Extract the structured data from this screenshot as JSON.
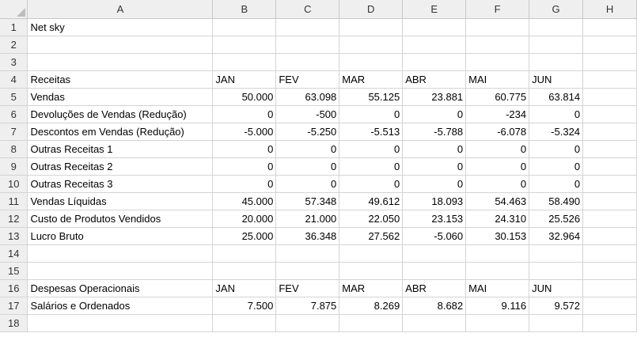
{
  "column_headers": [
    "A",
    "B",
    "C",
    "D",
    "E",
    "F",
    "G",
    "H"
  ],
  "rows": [
    {
      "n": "1",
      "cells": [
        "Net sky",
        "",
        "",
        "",
        "",
        "",
        "",
        ""
      ]
    },
    {
      "n": "2",
      "cells": [
        "",
        "",
        "",
        "",
        "",
        "",
        "",
        ""
      ]
    },
    {
      "n": "3",
      "cells": [
        "",
        "",
        "",
        "",
        "",
        "",
        "",
        ""
      ]
    },
    {
      "n": "4",
      "cells": [
        "Receitas",
        "JAN",
        "FEV",
        "MAR",
        "ABR",
        "MAI",
        "JUN",
        ""
      ]
    },
    {
      "n": "5",
      "cells": [
        "Vendas",
        "50.000",
        "63.098",
        "55.125",
        "23.881",
        "60.775",
        "63.814",
        ""
      ]
    },
    {
      "n": "6",
      "cells": [
        "Devoluções de Vendas (Redução)",
        "0",
        "-500",
        "0",
        "0",
        "-234",
        "0",
        ""
      ]
    },
    {
      "n": "7",
      "cells": [
        "Descontos em Vendas (Redução)",
        "-5.000",
        "-5.250",
        "-5.513",
        "-5.788",
        "-6.078",
        "-5.324",
        ""
      ]
    },
    {
      "n": "8",
      "cells": [
        "Outras Receitas 1",
        "0",
        "0",
        "0",
        "0",
        "0",
        "0",
        ""
      ]
    },
    {
      "n": "9",
      "cells": [
        "Outras Receitas 2",
        "0",
        "0",
        "0",
        "0",
        "0",
        "0",
        ""
      ]
    },
    {
      "n": "10",
      "cells": [
        "Outras Receitas 3",
        "0",
        "0",
        "0",
        "0",
        "0",
        "0",
        ""
      ]
    },
    {
      "n": "11",
      "cells": [
        "Vendas Líquidas",
        "45.000",
        "57.348",
        "49.612",
        "18.093",
        "54.463",
        "58.490",
        ""
      ]
    },
    {
      "n": "12",
      "cells": [
        "Custo de Produtos Vendidos",
        "20.000",
        "21.000",
        "22.050",
        "23.153",
        "24.310",
        "25.526",
        ""
      ]
    },
    {
      "n": "13",
      "cells": [
        "Lucro Bruto",
        "25.000",
        "36.348",
        "27.562",
        "-5.060",
        "30.153",
        "32.964",
        ""
      ]
    },
    {
      "n": "14",
      "cells": [
        "",
        "",
        "",
        "",
        "",
        "",
        "",
        ""
      ]
    },
    {
      "n": "15",
      "cells": [
        "",
        "",
        "",
        "",
        "",
        "",
        "",
        ""
      ]
    },
    {
      "n": "16",
      "cells": [
        "Despesas Operacionais",
        "JAN",
        "FEV",
        "MAR",
        "ABR",
        "MAI",
        "JUN",
        ""
      ]
    },
    {
      "n": "17",
      "cells": [
        "Salários e Ordenados",
        "7.500",
        "7.875",
        "8.269",
        "8.682",
        "9.116",
        "9.572",
        ""
      ]
    },
    {
      "n": "18",
      "cells": [
        "",
        "",
        "",
        "",
        "",
        "",
        "",
        ""
      ]
    }
  ]
}
